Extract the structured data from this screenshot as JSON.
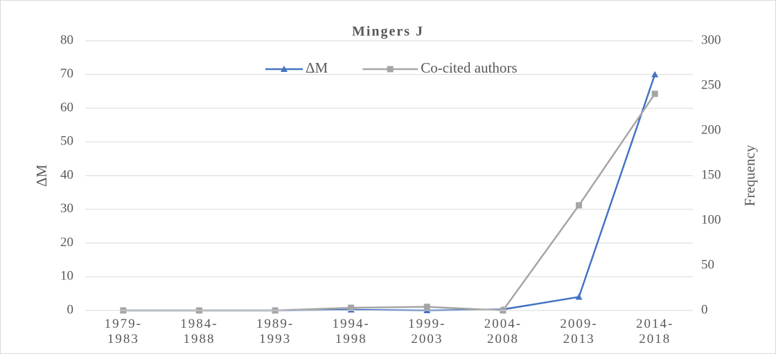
{
  "chart_data": {
    "type": "line",
    "title": "Mingers J",
    "categories": [
      "1979-1983",
      "1984-1988",
      "1989-1993",
      "1994-1998",
      "1999-2003",
      "2004-2008",
      "2009-2013",
      "2014-2018"
    ],
    "series": [
      {
        "name": "ΔM",
        "color": "#4472c4",
        "marker": "triangle",
        "values": [
          0,
          0,
          0,
          0.2,
          0,
          0.3,
          4,
          70
        ]
      },
      {
        "name": "Co-cited authors",
        "color": "#a5a5a5",
        "marker": "square",
        "axis": "y2",
        "values": [
          0,
          0,
          0,
          3,
          4,
          0,
          117,
          241
        ]
      }
    ],
    "ylabel": "ΔM",
    "y2label": "Frequency",
    "ylim": [
      0,
      80
    ],
    "yticks": [
      0,
      10,
      20,
      30,
      40,
      50,
      60,
      70,
      80
    ],
    "y2lim": [
      0,
      300
    ],
    "y2ticks": [
      0,
      50,
      100,
      150,
      200,
      250,
      300
    ],
    "grid": true,
    "legend": "top"
  }
}
